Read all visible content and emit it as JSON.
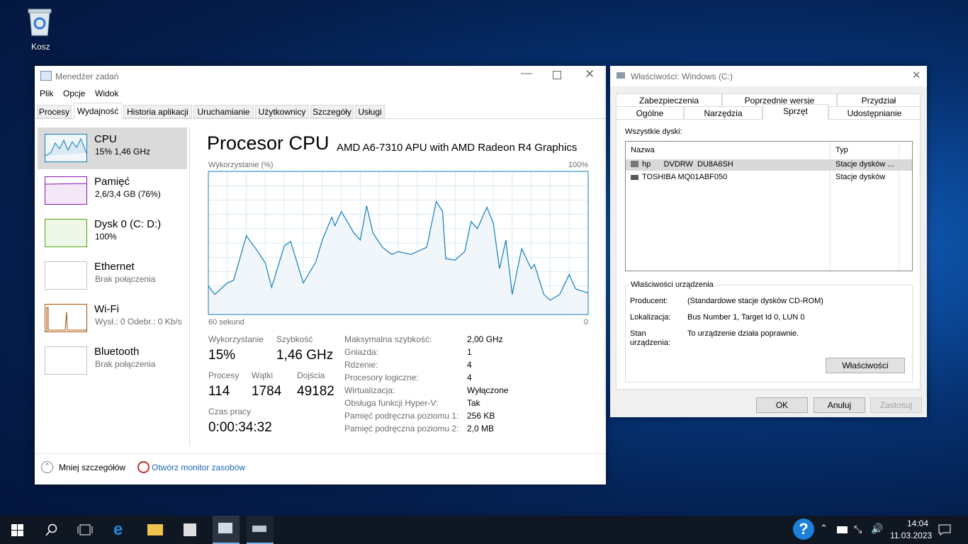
{
  "desktop": {
    "recycle_bin": "Kosz"
  },
  "task_manager": {
    "title": "Menedżer zadań",
    "menu": [
      "Plik",
      "Opcje",
      "Widok"
    ],
    "tabs": [
      "Procesy",
      "Wydajność",
      "Historia aplikacji",
      "Uruchamianie",
      "Użytkownicy",
      "Szczegóły",
      "Usługi"
    ],
    "sidebar": [
      {
        "name": "CPU",
        "detail": "15% 1,46 GHz"
      },
      {
        "name": "Pamięć",
        "detail": "2,6/3,4 GB (76%)"
      },
      {
        "name": "Dysk 0 (C: D:)",
        "detail": "100%"
      },
      {
        "name": "Ethernet",
        "detail": "Brak połączenia"
      },
      {
        "name": "Wi-Fi",
        "detail": "Wysł.: 0 Odebr.: 0 Kb/s"
      },
      {
        "name": "Bluetooth",
        "detail": "Brak połączenia"
      }
    ],
    "heading": "Procesor CPU",
    "cpu_model": "AMD A6-7310 APU with AMD Radeon R4 Graphics",
    "stats": [
      {
        "label": "Wykorzystanie",
        "value": "15%"
      },
      {
        "label": "Szybkość",
        "value": "1,46 GHz"
      },
      {
        "label": "Procesy",
        "value": "114"
      },
      {
        "label": "Wątki",
        "value": "1784"
      },
      {
        "label": "Dojścia",
        "value": "49182"
      },
      {
        "label": "Czas pracy",
        "value": "0:00:34:32"
      }
    ],
    "specs": [
      [
        "Maksymalna szybkość:",
        "2,00 GHz"
      ],
      [
        "Gniazda:",
        "1"
      ],
      [
        "Rdzenie:",
        "4"
      ],
      [
        "Procesory logiczne:",
        "4"
      ],
      [
        "Wirtualizacja:",
        "Wyłączone"
      ],
      [
        "Obsługa funkcji Hyper-V:",
        "Tak"
      ],
      [
        "Pamięć podręczna poziomu 1:",
        "256 KB"
      ],
      [
        "Pamięć podręczna poziomu 2:",
        "2,0 MB"
      ]
    ],
    "footer": {
      "less": "Mniej szczegółów",
      "monitor": "Otwórz monitor zasobów"
    }
  },
  "chart_data": {
    "type": "line",
    "y_label": "Wykorzystanie (%)",
    "x": [
      60,
      59,
      57,
      56,
      54,
      52.5,
      51,
      50,
      48,
      47,
      45,
      43,
      42,
      40.5,
      40,
      39,
      37,
      36,
      35,
      34,
      32.5,
      31,
      30,
      28,
      27,
      25.5,
      24,
      23,
      22.5,
      21,
      19.5,
      18.5,
      17.5,
      16,
      15,
      14,
      13,
      12,
      10.5,
      9,
      8.5,
      7,
      6,
      4.5,
      3,
      2,
      0
    ],
    "values": [
      20,
      14,
      22,
      24,
      55,
      46,
      36,
      19,
      48,
      51,
      22,
      37,
      52,
      68,
      62,
      72,
      57,
      52,
      76,
      57,
      47,
      42,
      44,
      42,
      44,
      47,
      79,
      72,
      39,
      38,
      44,
      65,
      60,
      75,
      64,
      32,
      52,
      14,
      46,
      32,
      35,
      14,
      10,
      14,
      28,
      18,
      15
    ],
    "xlim": [
      60,
      0
    ],
    "ylim": [
      0,
      100
    ],
    "xticks": [
      {
        "value": 60,
        "label": "60 sekund"
      },
      0
    ],
    "yticks": [
      {
        "value": 100,
        "label": "100%"
      }
    ],
    "color": "#117dbb",
    "fill": "#f1f6fa",
    "grid": true
  },
  "properties": {
    "title": "Właściwości: Windows (C:)",
    "tabs_row1": [
      "Zabezpieczenia",
      "Poprzednie wersje",
      "Przydział"
    ],
    "tabs_row2": [
      "Ogólne",
      "Narzędzia",
      "Sprzęt",
      "Udostępnianie"
    ],
    "all_disks": "Wszystkie dyski:",
    "columns": [
      "Nazwa",
      "Typ"
    ],
    "rows": [
      [
        "hp      DVDRW  DU8A6SH",
        "Stacje dysków ..."
      ],
      [
        "TOSHIBA MQ01ABF050",
        "Stacje dysków"
      ]
    ],
    "group": "Właściwości urządzenia",
    "props": [
      [
        "Producent:",
        "(Standardowe stacje dysków CD-ROM)"
      ],
      [
        "Lokalizacja:",
        "Bus Number 1, Target Id 0, LUN 0"
      ],
      [
        "Stan urządzenia:",
        "To urządzenie działa poprawnie."
      ]
    ],
    "props_button": "Właściwości",
    "buttons": [
      "OK",
      "Anuluj",
      "Zastosuj"
    ]
  },
  "taskbar": {
    "time": "14:04",
    "date": "11.03.2023"
  }
}
